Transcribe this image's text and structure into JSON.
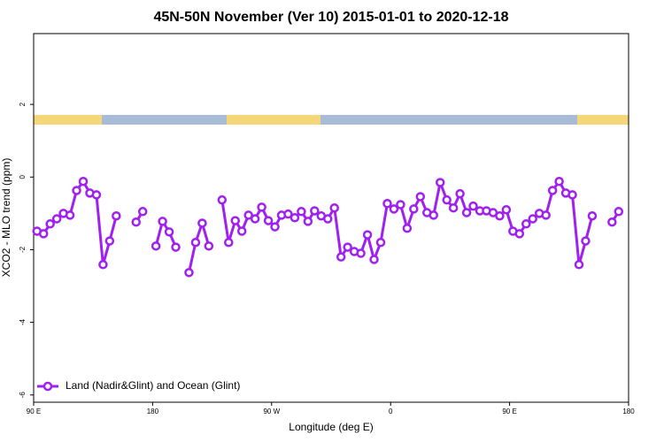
{
  "chart_data": {
    "type": "line",
    "title": "45N-50N November (Ver 10)   2015-01-01 to 2020-12-18",
    "x_label": "Longitude (deg E)",
    "y_label": "XCO2 - MLO trend (ppm)",
    "x": [
      92.5,
      97.5,
      102.5,
      107.5,
      112.5,
      117.5,
      122.5,
      127.5,
      132.5,
      137.5,
      142.5,
      147.5,
      152.5,
      157.5,
      162.5,
      167.5,
      172.5,
      177.5,
      182.5,
      187.5,
      192.5,
      197.5,
      202.5,
      207.5,
      212.5,
      217.5,
      222.5,
      227.5,
      232.5,
      237.5,
      242.5,
      247.5,
      252.5,
      257.5,
      262.5,
      267.5,
      272.5,
      277.5,
      282.5,
      287.5,
      292.5,
      297.5,
      302.5,
      307.5,
      312.5,
      317.5,
      322.5,
      327.5,
      332.5,
      337.5,
      342.5,
      347.5,
      352.5,
      357.5,
      362.5,
      367.5,
      372.5,
      377.5,
      382.5,
      387.5,
      392.5,
      397.5,
      402.5,
      407.5,
      412.5,
      417.5,
      422.5,
      427.5,
      432.5,
      437.5,
      442.5,
      447.5,
      452.5,
      457.5,
      462.5,
      467.5,
      472.5,
      477.5,
      482.5,
      487.5,
      492.5,
      497.5,
      502.5,
      507.5,
      512.5,
      517.5,
      522.5,
      527.5,
      532.5,
      537.5
    ],
    "series": [
      {
        "name": "Land (Nadir&Glint) and Ocean (Glint)",
        "color": "#a020f0",
        "values": [
          -1.49,
          -1.56,
          -1.29,
          -1.15,
          -1.0,
          -1.05,
          -0.37,
          -0.12,
          -0.44,
          -0.49,
          -2.41,
          -1.76,
          -1.07,
          null,
          null,
          -1.24,
          -0.95,
          null,
          -1.9,
          -1.22,
          -1.51,
          -1.93,
          null,
          -2.63,
          -1.8,
          -1.27,
          -1.9,
          null,
          -0.63,
          -1.8,
          -1.2,
          -1.49,
          -1.05,
          -1.15,
          -0.83,
          -1.2,
          -1.37,
          -1.05,
          -1.02,
          -1.12,
          -0.95,
          -1.22,
          -0.93,
          -1.07,
          -1.15,
          -0.85,
          -2.2,
          -1.93,
          -2.05,
          -2.1,
          -1.59,
          -2.27,
          -1.8,
          -0.73,
          -0.88,
          -0.76,
          -1.41,
          -0.88,
          -0.54,
          -0.98,
          -1.05,
          -0.15,
          -0.63,
          -0.85,
          -0.46,
          -0.98,
          -0.8,
          -0.93,
          -0.93,
          -0.98,
          -1.07,
          -0.9,
          -1.49,
          -1.56,
          -1.29,
          -1.15,
          -1.0,
          -1.05,
          -0.37,
          -0.12,
          -0.44,
          -0.49,
          -2.41,
          -1.76,
          -1.07,
          null,
          null,
          -1.24,
          -0.95,
          null
        ]
      }
    ],
    "xlim": [
      90,
      540
    ],
    "xticks": [
      {
        "value": 90,
        "label": "90 E"
      },
      180,
      {
        "value": 270,
        "label": "90 W"
      },
      {
        "value": 360,
        "label": "0"
      },
      {
        "value": 450,
        "label": "90 E"
      },
      {
        "value": 540,
        "label": "180"
      }
    ],
    "ylim": [
      -6.2,
      3.95
    ],
    "yticks": [
      -6,
      -4,
      -2,
      0,
      2
    ],
    "legend": "bottom-left"
  }
}
